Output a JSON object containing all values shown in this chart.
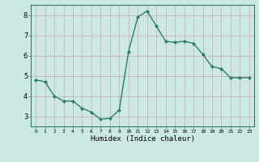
{
  "x": [
    0,
    1,
    2,
    3,
    4,
    5,
    6,
    7,
    8,
    9,
    10,
    11,
    12,
    13,
    14,
    15,
    16,
    17,
    18,
    19,
    20,
    21,
    22,
    23
  ],
  "y": [
    4.8,
    4.7,
    4.0,
    3.75,
    3.75,
    3.4,
    3.2,
    2.85,
    2.9,
    3.3,
    6.2,
    7.9,
    8.2,
    7.45,
    6.7,
    6.65,
    6.7,
    6.6,
    6.05,
    5.45,
    5.35,
    4.9,
    4.9,
    4.9
  ],
  "line_color": "#2d7d6e",
  "marker": "D",
  "marker_size": 2,
  "linewidth": 1.0,
  "xlabel": "Humidex (Indice chaleur)",
  "xlim": [
    -0.5,
    23.5
  ],
  "ylim": [
    2.5,
    8.5
  ],
  "yticks": [
    3,
    4,
    5,
    6,
    7,
    8
  ],
  "xticks": [
    0,
    1,
    2,
    3,
    4,
    5,
    6,
    7,
    8,
    9,
    10,
    11,
    12,
    13,
    14,
    15,
    16,
    17,
    18,
    19,
    20,
    21,
    22,
    23
  ],
  "bg_color": "#cce8e4",
  "grid_color_minor": "#b8d8d4",
  "grid_color_major": "#a8ccc8"
}
